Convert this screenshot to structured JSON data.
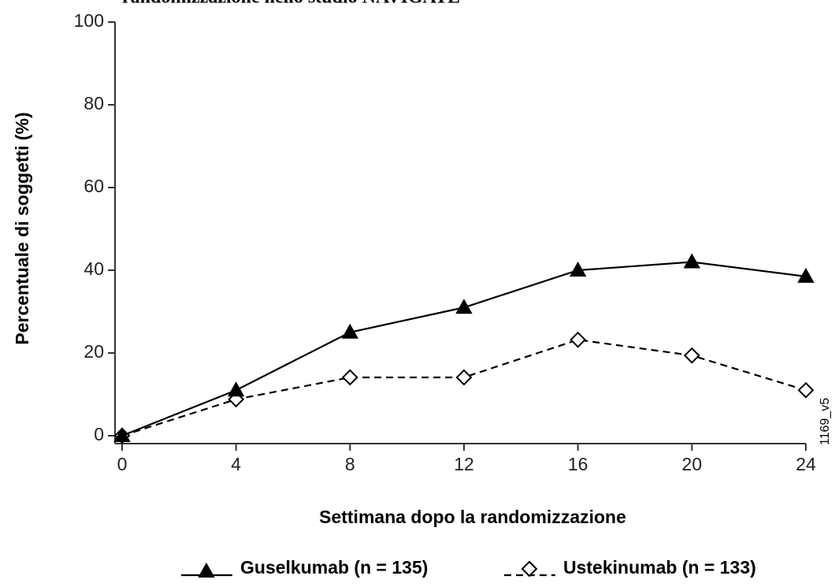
{
  "chart_data": {
    "type": "line",
    "title": "randomizzazione nello studio NAVIGATE",
    "x_label": "Settimana dopo la randomizzazione",
    "y_label": "Percentuale di soggetti (%)",
    "annotation": "1169_v5",
    "x": [
      0,
      4,
      8,
      12,
      16,
      20,
      24
    ],
    "xlim": [
      0,
      24
    ],
    "xticks": [
      0,
      4,
      8,
      12,
      16,
      20,
      24
    ],
    "ylim": [
      0,
      100
    ],
    "yticks": [
      0,
      20,
      40,
      60,
      80,
      100
    ],
    "series": [
      {
        "name": "Guselkumab (n = 135)",
        "color": "#000000",
        "marker": "triangle",
        "linestyle": "solid",
        "values": [
          0,
          11,
          25,
          31,
          40,
          42,
          38.5
        ]
      },
      {
        "name": "Ustekinumab (n = 133)",
        "color": "#000000",
        "marker": "diamond",
        "linestyle": "dashed",
        "values": [
          0,
          8.8,
          14.1,
          14.1,
          23.2,
          19.4,
          11
        ]
      }
    ]
  }
}
